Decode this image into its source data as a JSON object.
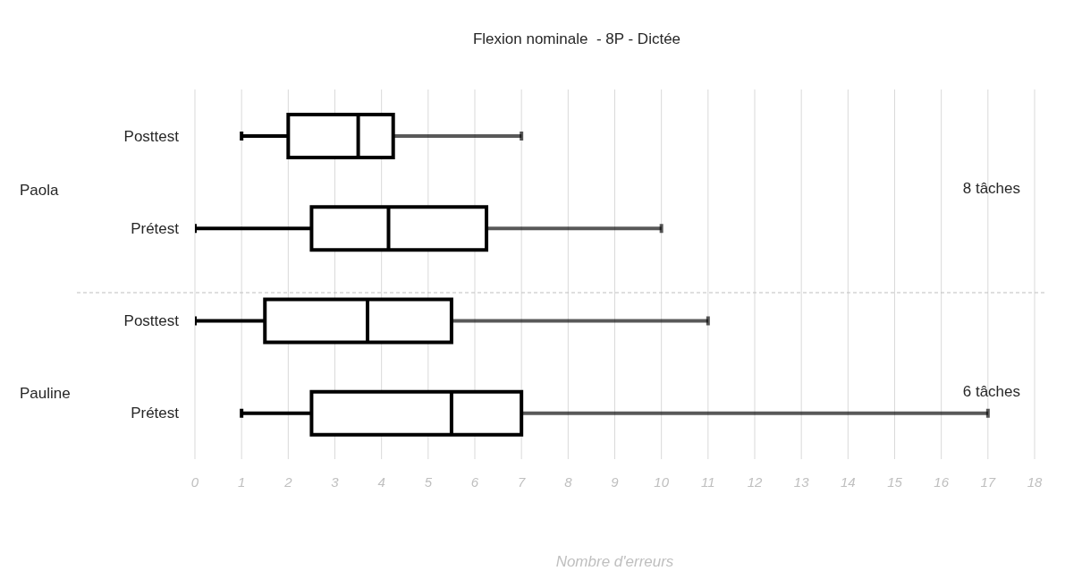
{
  "chart_data": {
    "type": "box",
    "title": "Flexion nominale  - 8P - Dictée",
    "xlabel": "Nombre d'erreurs",
    "orientation": "horizontal",
    "categories": [
      "Posttest",
      "Prétest",
      "Posttest",
      "Prétest"
    ],
    "boxes": [
      {
        "low": 1,
        "q1": 2,
        "median": 3.5,
        "q3": 4.25,
        "high": 7
      },
      {
        "low": 0,
        "q1": 2.5,
        "median": 4.15,
        "q3": 6.25,
        "high": 10
      },
      {
        "low": 0,
        "q1": 1.5,
        "median": 3.7,
        "q3": 5.5,
        "high": 11
      },
      {
        "low": 1,
        "q1": 2.5,
        "median": 5.5,
        "q3": 7,
        "high": 17
      }
    ],
    "color": "#000000",
    "xlim": [
      0,
      18
    ],
    "xticks": [
      0,
      1,
      2,
      3,
      4,
      5,
      6,
      7,
      8,
      9,
      10,
      11,
      12,
      13,
      14,
      15,
      16,
      17,
      18
    ],
    "grid": "x",
    "legend": false,
    "annotations": [
      "Paola",
      "8 tâches",
      "Pauline",
      "6 tâches"
    ]
  }
}
